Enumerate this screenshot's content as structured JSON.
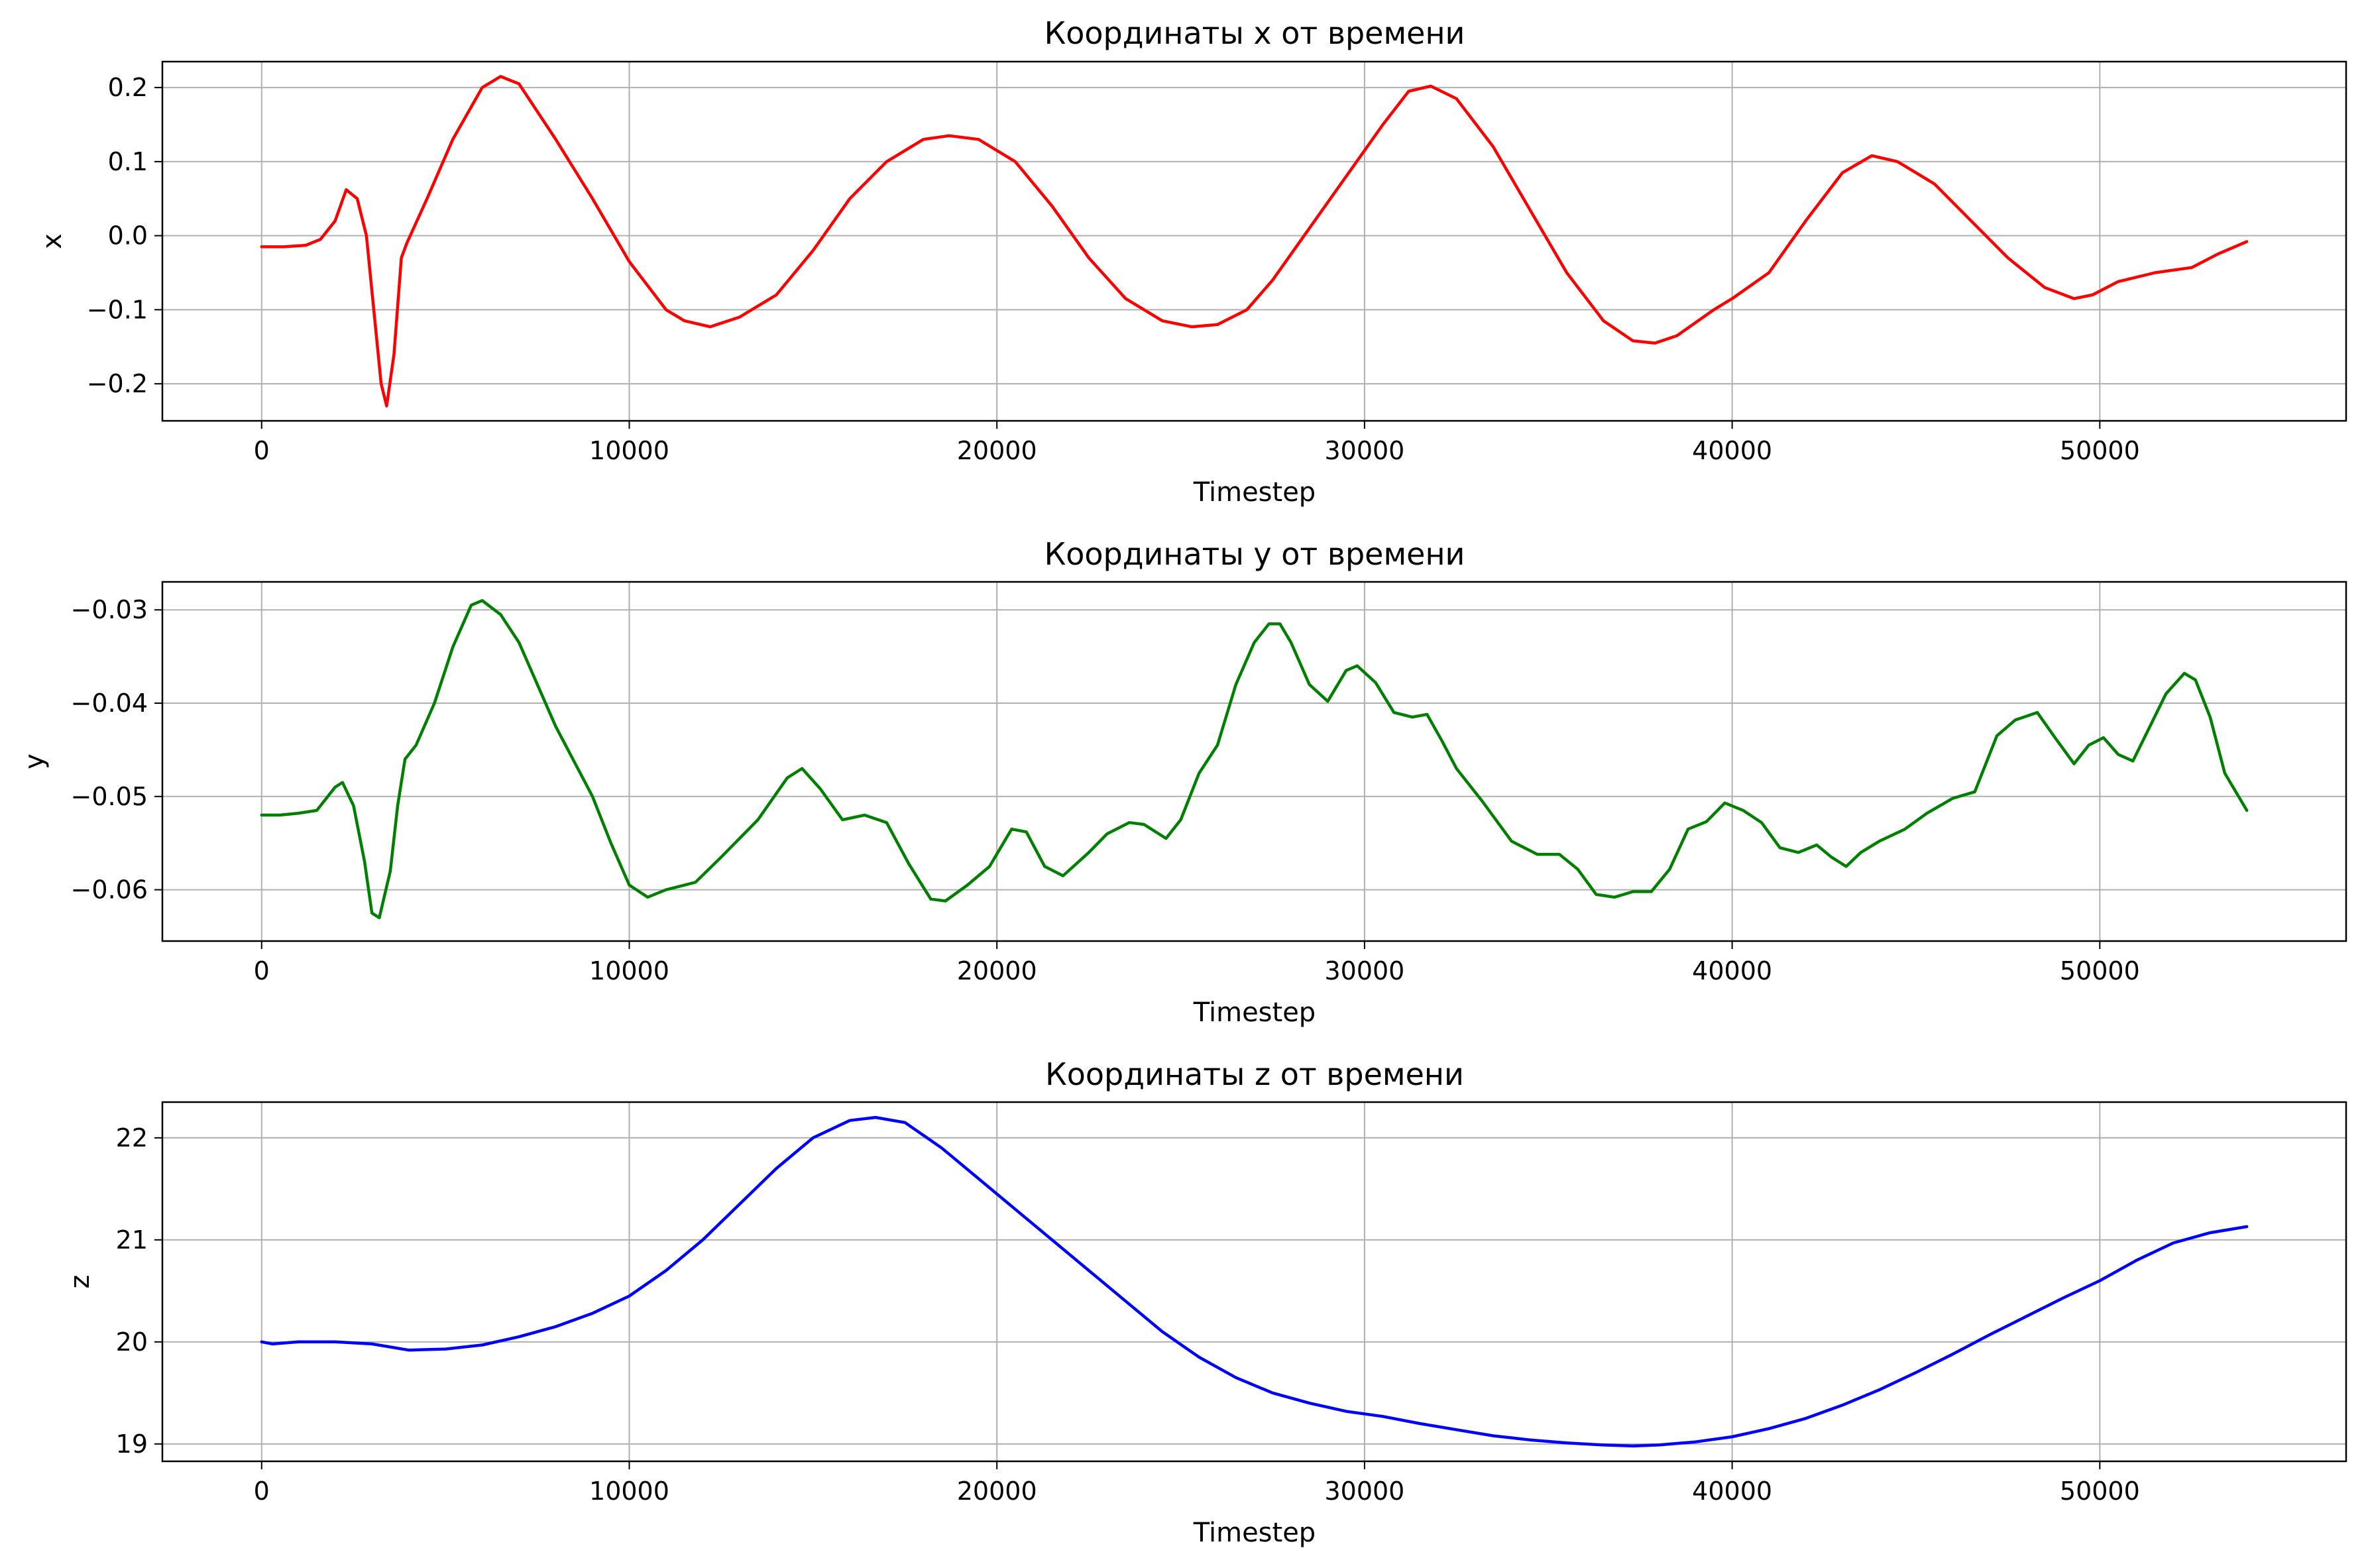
{
  "chart_data": [
    {
      "type": "line",
      "title": "Координаты x от времени",
      "xlabel": "Timestep",
      "ylabel": "x",
      "xlim": [
        -2700,
        56700
      ],
      "ylim": [
        -0.25,
        0.235
      ],
      "xticks": [
        0,
        10000,
        20000,
        30000,
        40000,
        50000
      ],
      "yticks": [
        -0.2,
        -0.1,
        0.0,
        0.1,
        0.2
      ],
      "ytick_labels": [
        "−0.2",
        "−0.1",
        "0.0",
        "0.1",
        "0.2"
      ],
      "grid": true,
      "series": [
        {
          "color": "#ff0000",
          "x": [
            0,
            600,
            1200,
            1600,
            2000,
            2300,
            2600,
            2850,
            3050,
            3250,
            3400,
            3600,
            3800,
            3950,
            4500,
            5200,
            6000,
            6500,
            7000,
            8000,
            9000,
            10000,
            11000,
            11500,
            12200,
            13000,
            14000,
            15000,
            16000,
            17000,
            18000,
            18700,
            19500,
            20500,
            21500,
            22500,
            23500,
            24500,
            25300,
            26000,
            26800,
            27500,
            28500,
            29500,
            30500,
            31200,
            31800,
            32500,
            33500,
            34500,
            35500,
            36500,
            37300,
            37900,
            38500,
            39500,
            40000,
            41000,
            42000,
            43000,
            43800,
            44500,
            45500,
            46500,
            47500,
            48500,
            49300,
            49800,
            50500,
            51500,
            52500,
            53200,
            54000
          ],
          "values": [
            -0.015,
            -0.015,
            -0.013,
            -0.005,
            0.02,
            0.062,
            0.05,
            0.0,
            -0.1,
            -0.2,
            -0.23,
            -0.16,
            -0.03,
            -0.01,
            0.05,
            0.13,
            0.2,
            0.215,
            0.205,
            0.13,
            0.05,
            -0.035,
            -0.1,
            -0.115,
            -0.123,
            -0.11,
            -0.08,
            -0.02,
            0.05,
            0.1,
            0.13,
            0.135,
            0.13,
            0.1,
            0.04,
            -0.03,
            -0.085,
            -0.115,
            -0.123,
            -0.12,
            -0.1,
            -0.06,
            0.01,
            0.08,
            0.15,
            0.195,
            0.202,
            0.185,
            0.12,
            0.035,
            -0.05,
            -0.115,
            -0.142,
            -0.145,
            -0.135,
            -0.1,
            -0.085,
            -0.05,
            0.02,
            0.085,
            0.108,
            0.1,
            0.07,
            0.02,
            -0.03,
            -0.07,
            -0.085,
            -0.08,
            -0.062,
            -0.05,
            -0.043,
            -0.025,
            -0.008
          ]
        }
      ]
    },
    {
      "type": "line",
      "title": "Координаты y от времени",
      "xlabel": "Timestep",
      "ylabel": "y",
      "xlim": [
        -2700,
        56700
      ],
      "ylim": [
        -0.0655,
        -0.027
      ],
      "xticks": [
        0,
        10000,
        20000,
        30000,
        40000,
        50000
      ],
      "yticks": [
        -0.06,
        -0.05,
        -0.04,
        -0.03
      ],
      "ytick_labels": [
        "−0.06",
        "−0.05",
        "−0.04",
        "−0.03"
      ],
      "grid": true,
      "series": [
        {
          "color": "#008000",
          "x": [
            0,
            500,
            1000,
            1500,
            2000,
            2200,
            2500,
            2800,
            3000,
            3200,
            3500,
            3700,
            3900,
            4200,
            4700,
            5200,
            5700,
            6000,
            6500,
            7000,
            8000,
            9000,
            9500,
            10000,
            10500,
            11000,
            11800,
            12500,
            13500,
            14300,
            14700,
            15200,
            15800,
            16400,
            17000,
            17600,
            18200,
            18600,
            19200,
            19800,
            20400,
            20800,
            21300,
            21800,
            22500,
            23000,
            23600,
            24000,
            24600,
            25000,
            25500,
            26000,
            26500,
            27000,
            27400,
            27700,
            28000,
            28500,
            29000,
            29500,
            29800,
            30300,
            30800,
            31300,
            31700,
            32100,
            32500,
            33200,
            34000,
            34700,
            35300,
            35800,
            36300,
            36800,
            37300,
            37800,
            38300,
            38800,
            39300,
            39800,
            40300,
            40800,
            41300,
            41800,
            42300,
            42700,
            43100,
            43500,
            44000,
            44700,
            45300,
            46000,
            46600,
            47200,
            47700,
            48300,
            48800,
            49300,
            49700,
            50100,
            50500,
            50900,
            51300,
            51800,
            52300,
            52600,
            53000,
            53400,
            54000
          ],
          "values": [
            -0.052,
            -0.052,
            -0.0518,
            -0.0515,
            -0.049,
            -0.0485,
            -0.051,
            -0.057,
            -0.0625,
            -0.063,
            -0.058,
            -0.051,
            -0.046,
            -0.0445,
            -0.04,
            -0.034,
            -0.0295,
            -0.029,
            -0.0305,
            -0.0335,
            -0.0425,
            -0.05,
            -0.055,
            -0.0595,
            -0.0608,
            -0.06,
            -0.0592,
            -0.0565,
            -0.0525,
            -0.048,
            -0.047,
            -0.0492,
            -0.0525,
            -0.052,
            -0.0528,
            -0.0572,
            -0.061,
            -0.0612,
            -0.0595,
            -0.0575,
            -0.0535,
            -0.0538,
            -0.0575,
            -0.0585,
            -0.056,
            -0.054,
            -0.0528,
            -0.053,
            -0.0545,
            -0.0525,
            -0.0475,
            -0.0445,
            -0.038,
            -0.0335,
            -0.0315,
            -0.0315,
            -0.0335,
            -0.038,
            -0.0398,
            -0.0365,
            -0.036,
            -0.0378,
            -0.041,
            -0.0415,
            -0.0412,
            -0.044,
            -0.047,
            -0.0505,
            -0.0548,
            -0.0562,
            -0.0562,
            -0.0578,
            -0.0605,
            -0.0608,
            -0.0602,
            -0.0602,
            -0.0578,
            -0.0535,
            -0.0527,
            -0.0507,
            -0.0515,
            -0.0528,
            -0.0555,
            -0.056,
            -0.0552,
            -0.0565,
            -0.0575,
            -0.056,
            -0.0548,
            -0.0535,
            -0.0518,
            -0.0502,
            -0.0495,
            -0.0435,
            -0.0418,
            -0.041,
            -0.0438,
            -0.0465,
            -0.0445,
            -0.0437,
            -0.0455,
            -0.0462,
            -0.043,
            -0.039,
            -0.0368,
            -0.0375,
            -0.0415,
            -0.0475,
            -0.0515
          ]
        }
      ]
    },
    {
      "type": "line",
      "title": "Координаты z от времени",
      "xlabel": "Timestep",
      "ylabel": "z",
      "xlim": [
        -2700,
        56700
      ],
      "ylim": [
        18.83,
        22.35
      ],
      "xticks": [
        0,
        10000,
        20000,
        30000,
        40000,
        50000
      ],
      "yticks": [
        19,
        20,
        21,
        22
      ],
      "ytick_labels": [
        "19",
        "20",
        "21",
        "22"
      ],
      "grid": true,
      "series": [
        {
          "color": "#0000ff",
          "x": [
            0,
            300,
            1000,
            2000,
            3000,
            4000,
            5000,
            6000,
            7000,
            8000,
            9000,
            10000,
            11000,
            12000,
            13000,
            14000,
            15000,
            16000,
            16700,
            17500,
            18500,
            19500,
            20500,
            21500,
            22500,
            23500,
            24500,
            25500,
            26500,
            27500,
            28500,
            29500,
            30500,
            31500,
            32500,
            33500,
            34500,
            35500,
            36500,
            37300,
            38000,
            39000,
            40000,
            41000,
            42000,
            43000,
            44000,
            45000,
            46000,
            47000,
            48000,
            49000,
            50000,
            51000,
            52000,
            53000,
            54000
          ],
          "values": [
            20.0,
            19.98,
            20.0,
            20.0,
            19.98,
            19.92,
            19.93,
            19.97,
            20.05,
            20.15,
            20.28,
            20.45,
            20.7,
            21.0,
            21.35,
            21.7,
            22.0,
            22.17,
            22.2,
            22.15,
            21.9,
            21.6,
            21.3,
            21.0,
            20.7,
            20.4,
            20.1,
            19.85,
            19.65,
            19.5,
            19.4,
            19.32,
            19.27,
            19.2,
            19.14,
            19.08,
            19.04,
            19.01,
            18.99,
            18.98,
            18.99,
            19.02,
            19.07,
            19.15,
            19.25,
            19.38,
            19.53,
            19.7,
            19.88,
            20.07,
            20.25,
            20.43,
            20.6,
            20.8,
            20.97,
            21.07,
            21.13
          ]
        }
      ]
    }
  ]
}
